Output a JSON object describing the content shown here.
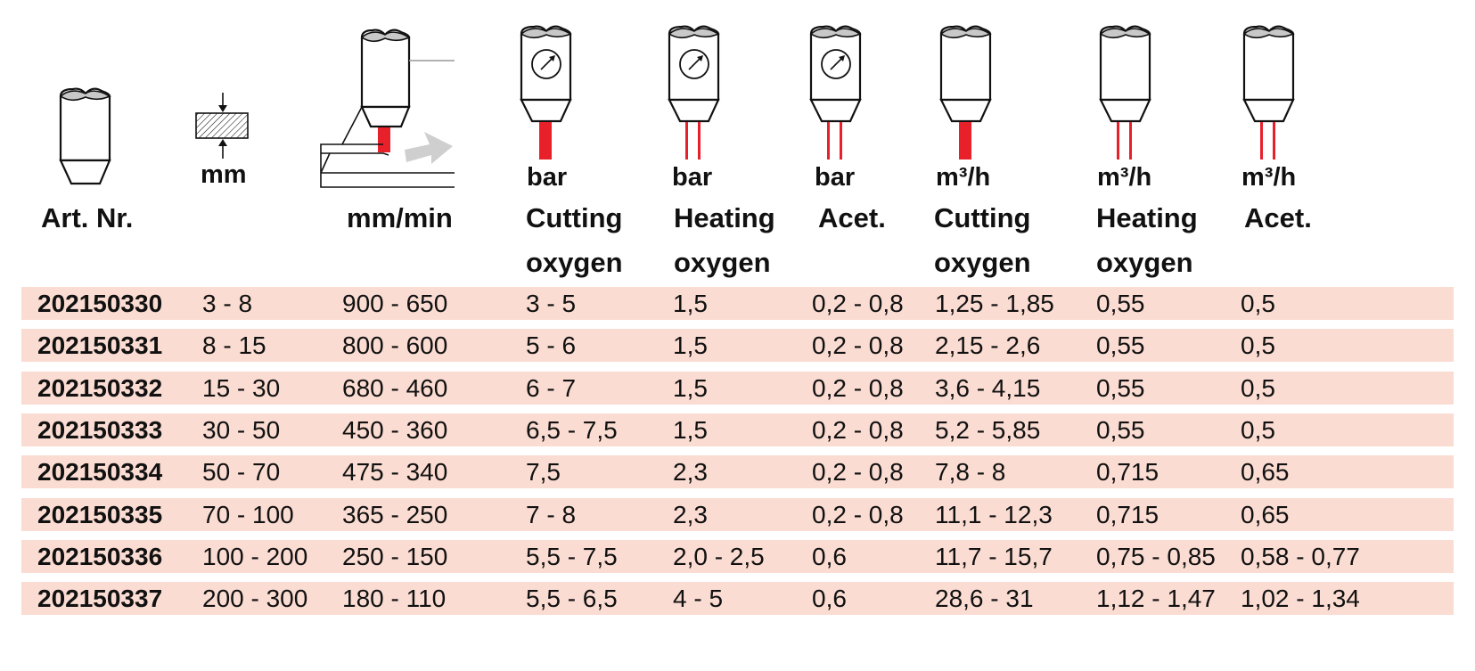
{
  "columns": [
    {
      "unit": "",
      "label": [
        "Art. Nr."
      ]
    },
    {
      "unit": "mm",
      "label": []
    },
    {
      "unit": "",
      "label": [
        "mm/min"
      ]
    },
    {
      "unit": "bar",
      "label": [
        "Cutting",
        "oxygen"
      ]
    },
    {
      "unit": "bar",
      "label": [
        "Heating",
        "oxygen"
      ]
    },
    {
      "unit": "bar",
      "label": [
        "Acet."
      ]
    },
    {
      "unit": "m³/h",
      "label": [
        "Cutting",
        "oxygen"
      ]
    },
    {
      "unit": "m³/h",
      "label": [
        "Heating",
        "oxygen"
      ]
    },
    {
      "unit": "m³/h",
      "label": [
        "Acet."
      ]
    }
  ],
  "rows": [
    [
      "202150330",
      "3 - 8",
      "900 - 650",
      "3 - 5",
      "1,5",
      "0,2 - 0,8",
      "1,25 - 1,85",
      "0,55",
      "0,5"
    ],
    [
      "202150331",
      "8 - 15",
      "800 - 600",
      "5 - 6",
      "1,5",
      "0,2 - 0,8",
      "2,15 - 2,6",
      "0,55",
      "0,5"
    ],
    [
      "202150332",
      "15 - 30",
      "680 - 460",
      "6 - 7",
      "1,5",
      "0,2 - 0,8",
      "3,6 - 4,15",
      "0,55",
      "0,5"
    ],
    [
      "202150333",
      "30 - 50",
      "450 - 360",
      "6,5 - 7,5",
      "1,5",
      "0,2 - 0,8",
      "5,2 - 5,85",
      "0,55",
      "0,5"
    ],
    [
      "202150334",
      "50 - 70",
      "475 - 340",
      "7,5",
      "2,3",
      "0,2 - 0,8",
      "7,8 - 8",
      "0,715",
      "0,65"
    ],
    [
      "202150335",
      "70 - 100",
      "365 - 250",
      "7 - 8",
      "2,3",
      "0,2 - 0,8",
      "11,1 - 12,3",
      "0,715",
      "0,65"
    ],
    [
      "202150336",
      "100 - 200",
      "250 - 150",
      "5,5 - 7,5",
      "2,0 - 2,5",
      "0,6",
      "11,7 - 15,7",
      "0,75 - 0,85",
      "0,58 - 0,77"
    ],
    [
      "202150337",
      "200 - 300",
      "180 - 110",
      "5,5 - 6,5",
      "4 - 5",
      "0,6",
      "28,6 - 31",
      "1,12 - 1,47",
      "1,02 - 1,34"
    ]
  ],
  "colors": {
    "row_band": "#fbdcd2",
    "flame_red": "#e8202a",
    "arrow_gray": "#cfcfcf",
    "tip_gray": "#c8c8c8"
  },
  "icons": [
    "torch-tip-icon",
    "plate-thickness-icon",
    "cutting-speed-icon",
    "pressure-gauge-torch-icon",
    "flow-torch-icon"
  ]
}
